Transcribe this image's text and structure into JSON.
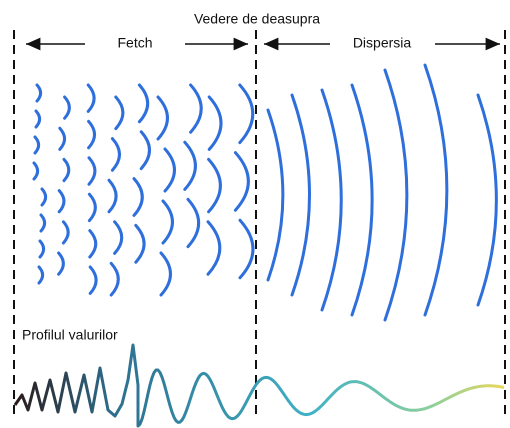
{
  "header": {
    "title": "Vedere de deasupra"
  },
  "regions": [
    {
      "label": "Fetch"
    },
    {
      "label": "Dispersia"
    }
  ],
  "profile": {
    "label": "Profilul valurilor"
  }
}
